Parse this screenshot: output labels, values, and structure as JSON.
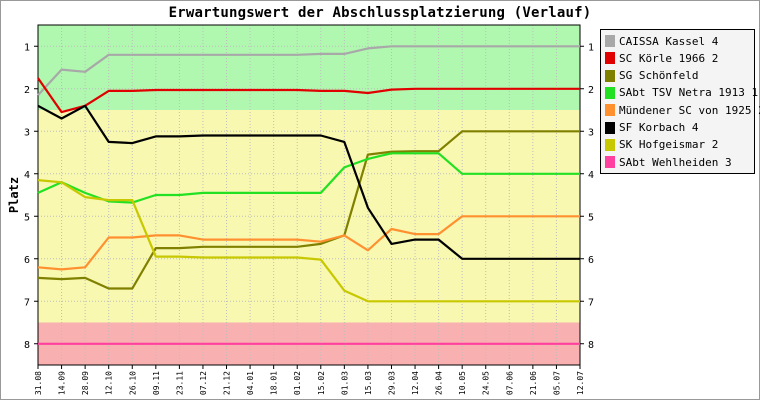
{
  "title": "Erwartungswert der Abschlussplatzierung (Verlauf)",
  "chart_data": {
    "type": "line",
    "title": "Erwartungswert der Abschlussplatzierung (Verlauf)",
    "ylabel": "Platz",
    "xlabel": "",
    "ylim": [
      8.5,
      0.5
    ],
    "y_inverted": true,
    "yticks": [
      1,
      2,
      3,
      4,
      5,
      6,
      7,
      8
    ],
    "zones": [
      {
        "from": 0.5,
        "to": 2.5,
        "color": "#b0f8b0"
      },
      {
        "from": 2.5,
        "to": 7.5,
        "color": "#f8f8b0"
      },
      {
        "from": 7.5,
        "to": 8.5,
        "color": "#f8b0b0"
      }
    ],
    "categories": [
      "31.08",
      "14.09",
      "28.09",
      "12.10",
      "26.10",
      "09.11",
      "23.11",
      "07.12",
      "21.12",
      "04.01",
      "18.01",
      "01.02",
      "15.02",
      "01.03",
      "15.03",
      "29.03",
      "12.04",
      "26.04",
      "10.05",
      "24.05",
      "07.06",
      "21.06",
      "05.07",
      "12.07"
    ],
    "series": [
      {
        "name": "CAISSA Kassel 4",
        "color": "#a8a8a8",
        "values": [
          2.15,
          1.55,
          1.6,
          1.2,
          1.2,
          1.2,
          1.2,
          1.2,
          1.2,
          1.2,
          1.2,
          1.2,
          1.18,
          1.18,
          1.05,
          1.0,
          1.0,
          1.0,
          1.0,
          1.0,
          1.0,
          1.0,
          1.0,
          1.0
        ]
      },
      {
        "name": "SC Körle 1966 2",
        "color": "#e00000",
        "values": [
          1.75,
          2.55,
          2.4,
          2.05,
          2.05,
          2.03,
          2.03,
          2.03,
          2.03,
          2.03,
          2.03,
          2.03,
          2.05,
          2.05,
          2.1,
          2.02,
          2.0,
          2.0,
          2.0,
          2.0,
          2.0,
          2.0,
          2.0,
          2.0
        ]
      },
      {
        "name": "SG Schönfeld",
        "color": "#808000",
        "values": [
          6.45,
          6.48,
          6.45,
          6.7,
          6.7,
          5.75,
          5.75,
          5.72,
          5.72,
          5.72,
          5.72,
          5.72,
          5.65,
          5.45,
          3.55,
          3.48,
          3.47,
          3.47,
          3.0,
          3.0,
          3.0,
          3.0,
          3.0,
          3.0
        ]
      },
      {
        "name": "SAbt TSV Netra 1913 1",
        "color": "#22e022",
        "values": [
          4.45,
          4.2,
          4.45,
          4.65,
          4.68,
          4.5,
          4.5,
          4.45,
          4.45,
          4.45,
          4.45,
          4.45,
          4.45,
          3.85,
          3.65,
          3.52,
          3.52,
          3.52,
          4.0,
          4.0,
          4.0,
          4.0,
          4.0,
          4.0
        ]
      },
      {
        "name": "Mündener SC von 1925 2",
        "color": "#ff9030",
        "values": [
          6.2,
          6.25,
          6.2,
          5.5,
          5.5,
          5.45,
          5.45,
          5.55,
          5.55,
          5.55,
          5.55,
          5.55,
          5.6,
          5.45,
          5.8,
          5.3,
          5.42,
          5.42,
          5.0,
          5.0,
          5.0,
          5.0,
          5.0,
          5.0
        ]
      },
      {
        "name": "SF Korbach 4",
        "color": "#000000",
        "values": [
          2.4,
          2.7,
          2.4,
          3.25,
          3.28,
          3.12,
          3.12,
          3.1,
          3.1,
          3.1,
          3.1,
          3.1,
          3.1,
          3.25,
          4.8,
          5.65,
          5.55,
          5.55,
          6.0,
          6.0,
          6.0,
          6.0,
          6.0,
          6.0
        ]
      },
      {
        "name": "SK Hofgeismar 2",
        "color": "#c8c800",
        "values": [
          4.15,
          4.2,
          4.55,
          4.62,
          4.62,
          5.95,
          5.95,
          5.97,
          5.97,
          5.97,
          5.97,
          5.97,
          6.02,
          6.75,
          7.0,
          7.0,
          7.0,
          7.0,
          7.0,
          7.0,
          7.0,
          7.0,
          7.0,
          7.0
        ]
      },
      {
        "name": "SAbt Wehlheiden 3",
        "color": "#ff40a0",
        "values": [
          8,
          8,
          8,
          8,
          8,
          8,
          8,
          8,
          8,
          8,
          8,
          8,
          8,
          8,
          8,
          8,
          8,
          8,
          8,
          8,
          8,
          8,
          8,
          8
        ]
      }
    ],
    "grid": true,
    "legend": "right"
  }
}
